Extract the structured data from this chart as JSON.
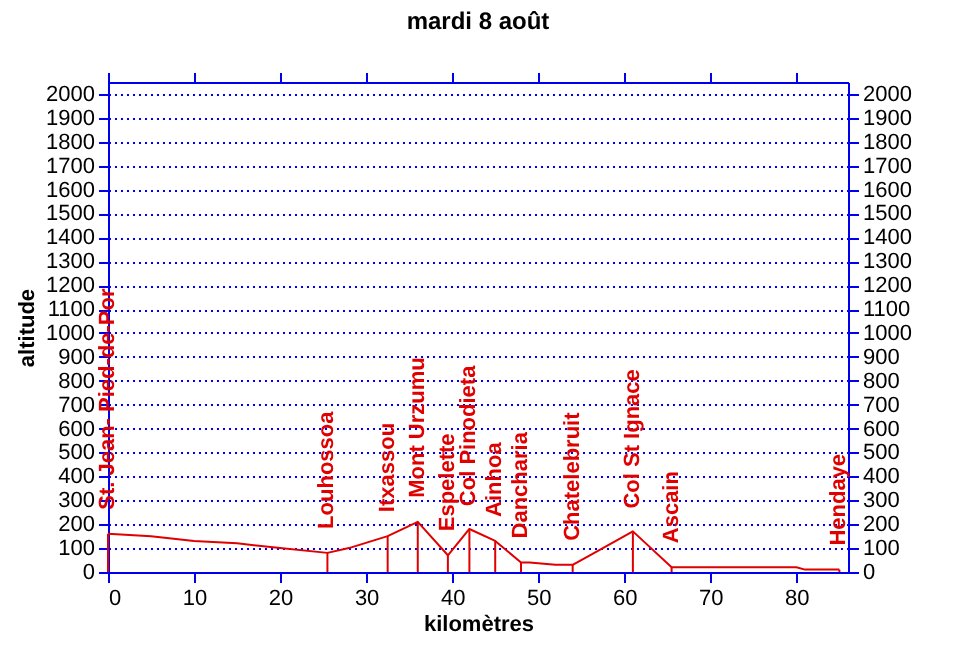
{
  "chart_data": {
    "type": "line",
    "title": "mardi  8  août",
    "xlabel": "kilomètres",
    "ylabel": "altitude",
    "x": [
      0,
      5,
      10,
      15,
      20,
      25.5,
      28,
      32.5,
      36,
      39.5,
      42,
      45,
      48,
      49,
      52,
      54,
      56,
      61,
      65.5,
      70,
      71,
      80,
      81,
      85
    ],
    "series": [
      {
        "color": "#e00000",
        "values": [
          160,
          150,
          130,
          120,
          100,
          80,
          100,
          150,
          210,
          70,
          180,
          130,
          40,
          40,
          30,
          30,
          70,
          170,
          20,
          20,
          20,
          20,
          10,
          10
        ]
      }
    ],
    "xlim": [
      0,
      86
    ],
    "xticks": [
      0,
      10,
      20,
      30,
      40,
      50,
      60,
      70,
      80
    ],
    "ylim": [
      0,
      2050
    ],
    "yticks": [
      0,
      100,
      200,
      300,
      400,
      500,
      600,
      700,
      800,
      900,
      1000,
      1100,
      1200,
      1300,
      1400,
      1500,
      1600,
      1700,
      1800,
      1900,
      2000
    ],
    "y2lim": [
      0,
      2050
    ],
    "y2ticks": [
      0,
      100,
      200,
      300,
      400,
      500,
      600,
      700,
      800,
      900,
      1000,
      1100,
      1200,
      1300,
      1400,
      1500,
      1600,
      1700,
      1800,
      1900,
      2000
    ],
    "grid": "y",
    "line_style": "solid",
    "annotations": [
      {
        "text": "St. Jean- Pied-de-Por",
        "x": 0,
        "y": 160
      },
      {
        "text": "Louhossoa",
        "x": 25.5,
        "y": 80
      },
      {
        "text": "Itxassou",
        "x": 32.5,
        "y": 150
      },
      {
        "text": "Mont Urzumu",
        "x": 36,
        "y": 210
      },
      {
        "text": "Espelette",
        "x": 39.5,
        "y": 70
      },
      {
        "text": "Col Pinodieta",
        "x": 42,
        "y": 175
      },
      {
        "text": "Ainhoa",
        "x": 45,
        "y": 130
      },
      {
        "text": "Dancharia",
        "x": 48,
        "y": 40
      },
      {
        "text": "Chatelebruit",
        "x": 54,
        "y": 30
      },
      {
        "text": "Col St Ignace",
        "x": 61,
        "y": 165
      },
      {
        "text": "Ascain",
        "x": 65.5,
        "y": 20
      },
      {
        "text": "Hendaye",
        "x": 85,
        "y": 10
      }
    ]
  }
}
